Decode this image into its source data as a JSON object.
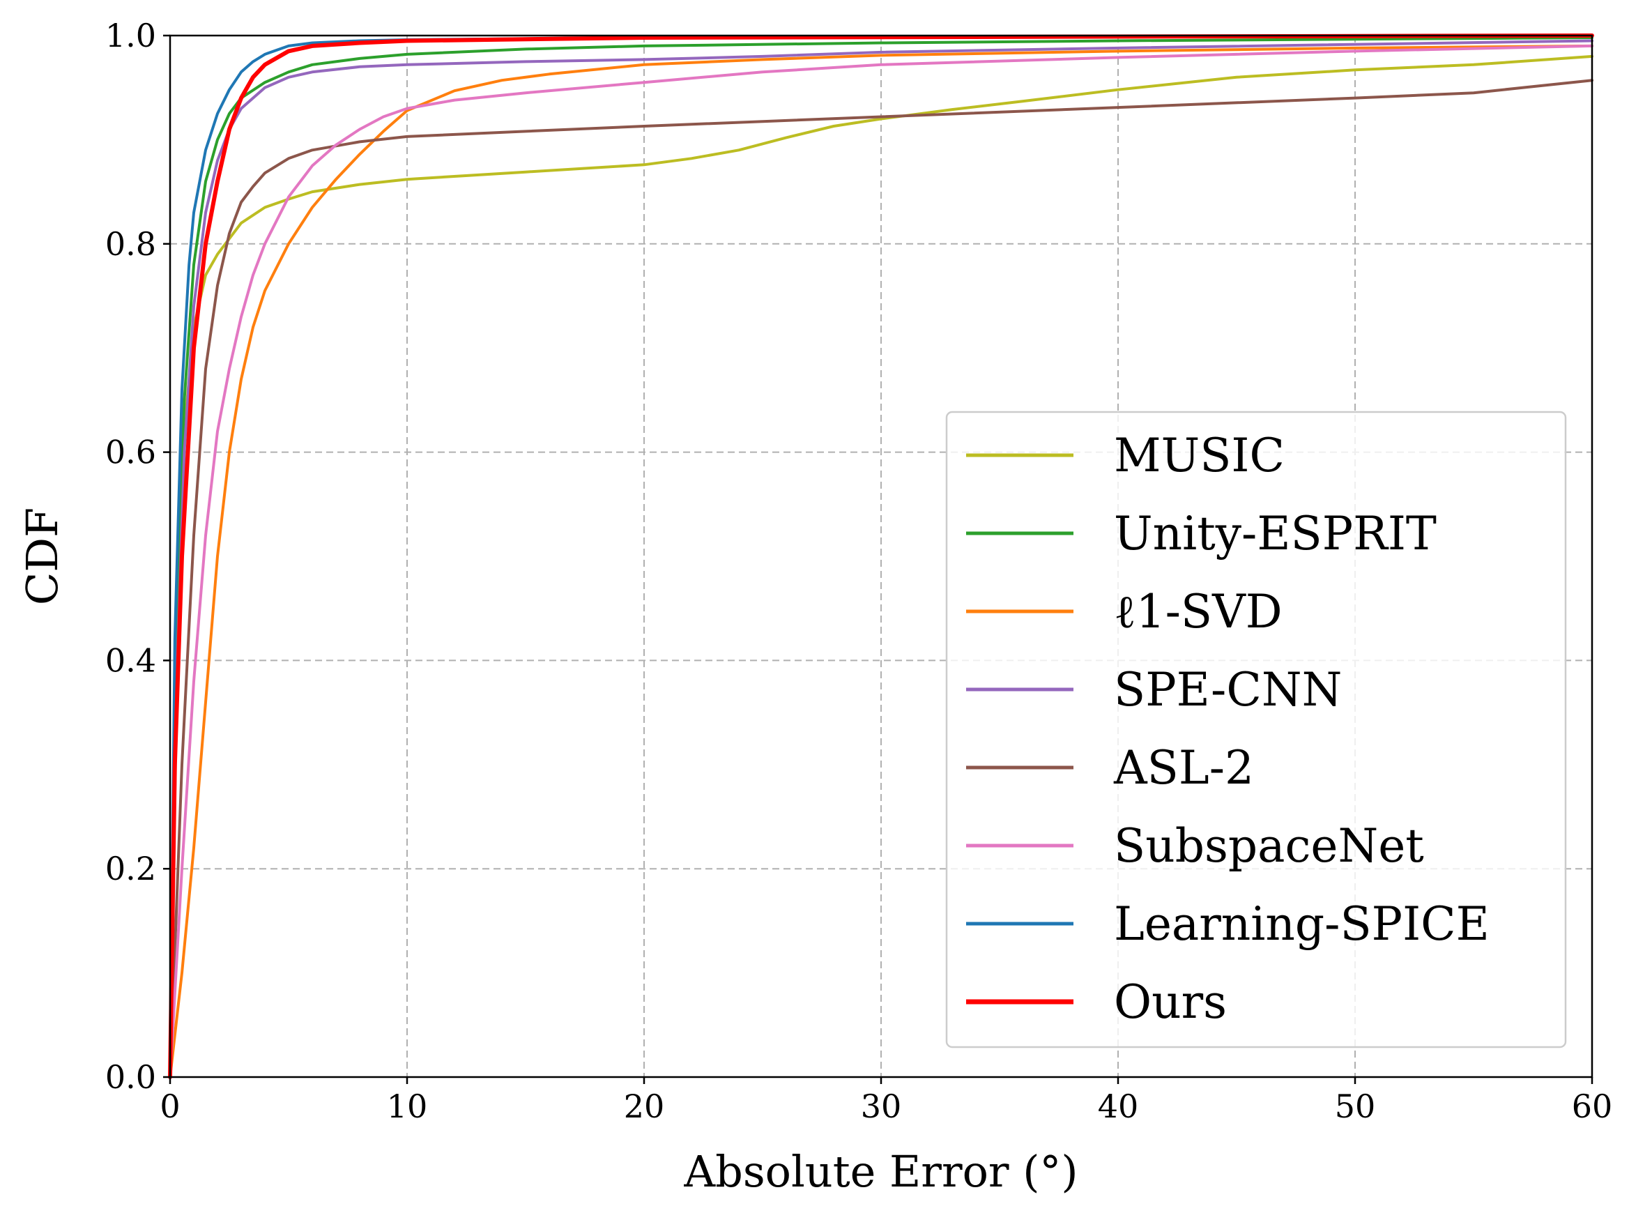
{
  "chart_data": {
    "type": "line",
    "title": "",
    "xlabel": "Absolute Error (°)",
    "ylabel": "CDF",
    "xlim": [
      0,
      60
    ],
    "ylim": [
      0,
      1
    ],
    "xticks": [
      0,
      10,
      20,
      30,
      40,
      50,
      60
    ],
    "xtick_labels": [
      "0",
      "10",
      "20",
      "30",
      "40",
      "50",
      "60"
    ],
    "yticks": [
      0,
      0.2,
      0.4,
      0.6,
      0.8,
      1.0
    ],
    "ytick_labels": [
      "0.0",
      "0.2",
      "0.4",
      "0.6",
      "0.8",
      "1.0"
    ],
    "grid": true,
    "legend_position": "lower-right",
    "series": [
      {
        "name": "MUSIC",
        "color": "#bcbd22",
        "x": [
          0,
          0.3,
          0.6,
          1,
          1.5,
          2,
          2.5,
          3,
          4,
          5,
          6,
          8,
          10,
          15,
          20,
          22,
          24,
          26,
          28,
          30,
          33,
          36,
          40,
          45,
          50,
          55,
          60
        ],
        "y": [
          0,
          0.45,
          0.62,
          0.72,
          0.77,
          0.79,
          0.805,
          0.82,
          0.835,
          0.843,
          0.85,
          0.857,
          0.862,
          0.869,
          0.876,
          0.882,
          0.89,
          0.902,
          0.913,
          0.92,
          0.929,
          0.937,
          0.948,
          0.96,
          0.967,
          0.972,
          0.98
        ]
      },
      {
        "name": "Unity-ESPRIT",
        "color": "#2ca02c",
        "x": [
          0,
          0.3,
          0.6,
          1,
          1.5,
          2,
          2.5,
          3,
          4,
          5,
          6,
          8,
          10,
          15,
          20,
          30,
          40,
          60
        ],
        "y": [
          0,
          0.45,
          0.65,
          0.78,
          0.86,
          0.9,
          0.925,
          0.94,
          0.955,
          0.965,
          0.972,
          0.978,
          0.982,
          0.987,
          0.99,
          0.993,
          0.995,
          0.998
        ]
      },
      {
        "name": "ℓ1-SVD",
        "color": "#ff7f0e",
        "x": [
          0,
          0.5,
          1,
          1.5,
          2,
          2.5,
          3,
          3.5,
          4,
          5,
          6,
          7,
          8,
          9,
          10,
          12,
          14,
          16,
          20,
          25,
          30,
          40,
          50,
          60
        ],
        "y": [
          0,
          0.1,
          0.22,
          0.36,
          0.5,
          0.6,
          0.67,
          0.72,
          0.755,
          0.8,
          0.835,
          0.862,
          0.886,
          0.908,
          0.928,
          0.947,
          0.957,
          0.963,
          0.972,
          0.977,
          0.981,
          0.985,
          0.988,
          0.99
        ]
      },
      {
        "name": "SPE-CNN",
        "color": "#9467bd",
        "x": [
          0,
          0.3,
          0.6,
          1,
          1.5,
          2,
          2.5,
          3,
          4,
          5,
          6,
          8,
          10,
          15,
          20,
          25,
          30,
          40,
          60
        ],
        "y": [
          0,
          0.4,
          0.6,
          0.74,
          0.83,
          0.88,
          0.91,
          0.93,
          0.95,
          0.96,
          0.965,
          0.97,
          0.972,
          0.975,
          0.977,
          0.98,
          0.984,
          0.988,
          0.995
        ]
      },
      {
        "name": "ASL-2",
        "color": "#8c564b",
        "x": [
          0,
          0.5,
          1,
          1.5,
          2,
          2.5,
          3,
          3.5,
          4,
          5,
          6,
          8,
          10,
          15,
          20,
          30,
          40,
          50,
          55,
          60
        ],
        "y": [
          0,
          0.3,
          0.52,
          0.68,
          0.76,
          0.81,
          0.84,
          0.855,
          0.868,
          0.882,
          0.89,
          0.898,
          0.903,
          0.908,
          0.913,
          0.922,
          0.931,
          0.94,
          0.945,
          0.957
        ]
      },
      {
        "name": "SubspaceNet",
        "color": "#e377c2",
        "x": [
          0,
          0.5,
          1,
          1.5,
          2,
          2.5,
          3,
          3.5,
          4,
          5,
          6,
          7,
          8,
          9,
          10,
          12,
          15,
          20,
          25,
          30,
          40,
          50,
          60
        ],
        "y": [
          0,
          0.2,
          0.38,
          0.52,
          0.62,
          0.68,
          0.73,
          0.77,
          0.8,
          0.845,
          0.875,
          0.895,
          0.91,
          0.922,
          0.93,
          0.938,
          0.945,
          0.955,
          0.965,
          0.972,
          0.979,
          0.985,
          0.99
        ]
      },
      {
        "name": "Learning-SPICE",
        "color": "#1f77b4",
        "x": [
          0,
          0.2,
          0.5,
          0.8,
          1,
          1.5,
          2,
          2.5,
          3,
          3.5,
          4,
          5,
          6,
          8,
          10,
          20,
          60
        ],
        "y": [
          0,
          0.42,
          0.66,
          0.78,
          0.83,
          0.89,
          0.925,
          0.948,
          0.965,
          0.975,
          0.982,
          0.99,
          0.993,
          0.995,
          0.996,
          0.998,
          1.0
        ]
      },
      {
        "name": "Ours",
        "color": "#ff0000",
        "x": [
          0,
          0.2,
          0.5,
          0.8,
          1,
          1.5,
          2,
          2.5,
          3,
          3.5,
          4,
          5,
          6,
          8,
          10,
          20,
          60
        ],
        "y": [
          0,
          0.3,
          0.5,
          0.62,
          0.7,
          0.8,
          0.86,
          0.91,
          0.94,
          0.96,
          0.972,
          0.985,
          0.99,
          0.993,
          0.995,
          0.998,
          1.0
        ]
      }
    ]
  }
}
